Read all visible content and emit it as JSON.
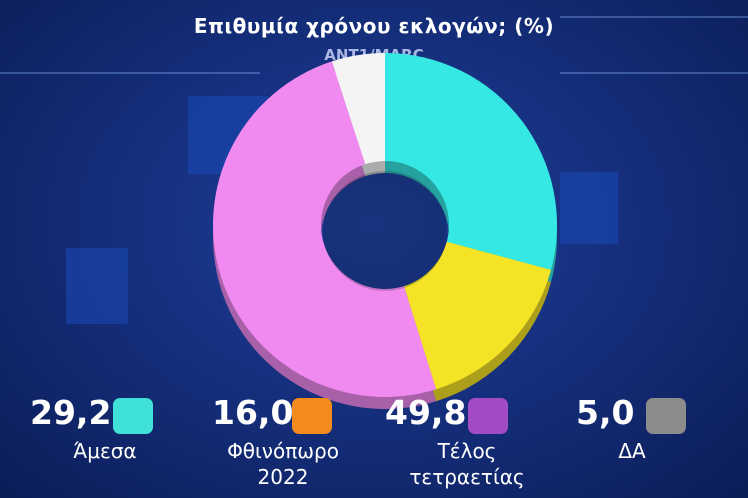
{
  "header": {
    "title": "Επιθυμία χρόνου εκλογών; (%)",
    "source": "ANT1/MARC"
  },
  "chart_data": {
    "type": "pie",
    "variant": "donut",
    "title": "Επιθυμία χρόνου εκλογών; (%)",
    "source": "ANT1/MARC",
    "legend_position": "bottom",
    "slices": [
      {
        "label": "Άμεσα",
        "value": 29.2,
        "value_text": "29,2",
        "color": "#35e8e4",
        "legend_color": "#3fe0d7"
      },
      {
        "label": "Φθινόπωρο 2022",
        "value": 16.0,
        "value_text": "16,0",
        "color": "#f5e426",
        "legend_color": "#f28a1e"
      },
      {
        "label": "Τέλος τετραετίας",
        "value": 49.8,
        "value_text": "49,8",
        "color": "#f08af0",
        "legend_color": "#a24bc4"
      },
      {
        "label": "ΔΑ",
        "value": 5.0,
        "value_text": "5,0",
        "color": "#f4f4f4",
        "legend_color": "#8c8c8c"
      }
    ]
  }
}
